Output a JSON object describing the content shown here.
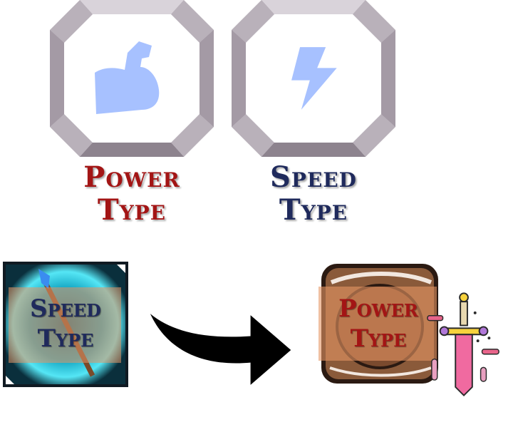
{
  "power_label": {
    "line1": "Power",
    "line2": "Type"
  },
  "speed_label": {
    "line1": "Speed",
    "line2": "Type"
  },
  "speed_card": {
    "line1": "Speed",
    "line2": "Type"
  },
  "power_card": {
    "line1": "Power",
    "line2": "Type"
  },
  "colors": {
    "power": "#a31515",
    "speed": "#1f2a5c",
    "icon_blue": "#a7c1ff",
    "frame_gray": "#b7b0b8"
  },
  "icons": [
    "flexed-bicep-icon",
    "lightning-bolt-icon",
    "spear-item-icon",
    "curved-arrow-icon",
    "wooden-shield-icon",
    "sword-icon"
  ]
}
